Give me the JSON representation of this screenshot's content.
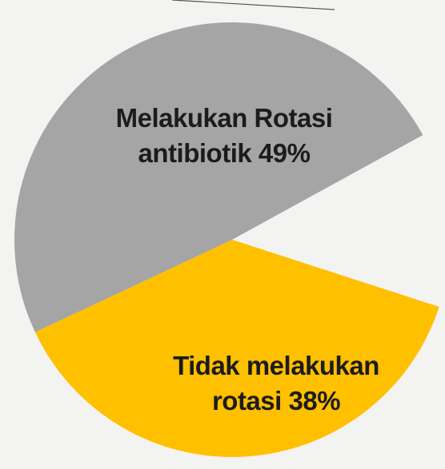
{
  "chart_data": {
    "type": "pie",
    "categories": [
      "Melakukan Rotasi antibiotik",
      "Tidak melakukan rotasi"
    ],
    "values": [
      49,
      38
    ],
    "value_labels": [
      "49%",
      "38%"
    ],
    "colors": [
      "#a5a5a5",
      "#ffc000"
    ]
  }
}
